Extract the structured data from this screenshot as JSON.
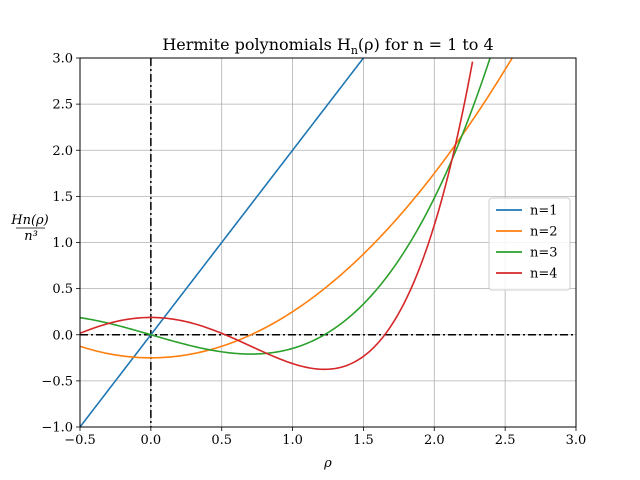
{
  "chart_data": {
    "type": "line",
    "title_text": "Hermite polynomials H",
    "title_sub": "n",
    "title_rest": "(ρ) for n = 1 to 4",
    "xlabel": "ρ",
    "ylabel_top": "Hn(ρ)",
    "ylabel_bottom": "n³",
    "xlim": [
      -0.5,
      3.0
    ],
    "ylim": [
      -1.0,
      3.0
    ],
    "xticks": [
      -0.5,
      0.0,
      0.5,
      1.0,
      1.5,
      2.0,
      2.5,
      3.0
    ],
    "xtick_labels": [
      "−0.5",
      "0.0",
      "0.5",
      "1.0",
      "1.5",
      "2.0",
      "2.5",
      "3.0"
    ],
    "yticks": [
      -1.0,
      -0.5,
      0.0,
      0.5,
      1.0,
      1.5,
      2.0,
      2.5,
      3.0
    ],
    "ytick_labels": [
      "−1.0",
      "−0.5",
      "0.0",
      "0.5",
      "1.0",
      "1.5",
      "2.0",
      "2.5",
      "3.0"
    ],
    "grid": true,
    "legend_position": "center-right",
    "reference_lines": [
      {
        "orientation": "horizontal",
        "value": 0.0,
        "style": "dash-dot",
        "color": "#000000"
      },
      {
        "orientation": "vertical",
        "value": 0.0,
        "style": "dash-dot",
        "color": "#000000"
      }
    ],
    "series": [
      {
        "name": "n=1",
        "color": "#1f77b4",
        "n": 1,
        "x": [
          -0.5,
          -0.25,
          0.0,
          0.25,
          0.5,
          0.75,
          1.0,
          1.25,
          1.5
        ],
        "y": [
          -1.0,
          -0.5,
          0.0,
          0.5,
          1.0,
          1.5,
          2.0,
          2.5,
          3.0
        ]
      },
      {
        "name": "n=2",
        "color": "#ff7f0e",
        "n": 2,
        "x": [
          -0.5,
          -0.25,
          0.0,
          0.25,
          0.5,
          0.75,
          1.0,
          1.25,
          1.5,
          1.75,
          2.0,
          2.25,
          2.5,
          2.56
        ],
        "y": [
          -0.125,
          -0.219,
          -0.25,
          -0.219,
          -0.125,
          0.031,
          0.25,
          0.531,
          0.875,
          1.281,
          1.75,
          2.281,
          2.875,
          3.027
        ]
      },
      {
        "name": "n=3",
        "color": "#2ca02c",
        "n": 3,
        "x": [
          -0.5,
          -0.25,
          0.0,
          0.25,
          0.5,
          0.75,
          1.0,
          1.25,
          1.5,
          1.75,
          2.0,
          2.25,
          2.4
        ],
        "y": [
          0.185,
          0.102,
          0.0,
          -0.102,
          -0.185,
          -0.219,
          -0.148,
          0.058,
          0.444,
          1.065,
          1.926,
          3.102,
          3.91
        ]
      },
      {
        "name": "n=4",
        "color": "#d62728",
        "n": 4,
        "x": [
          -0.5,
          -0.25,
          0.0,
          0.25,
          0.5,
          0.75,
          1.0,
          1.25,
          1.5,
          1.75,
          2.0,
          2.1,
          2.2,
          2.27
        ],
        "y": [
          0.016,
          0.129,
          0.188,
          0.129,
          -0.016,
          -0.176,
          -0.313,
          -0.356,
          -0.203,
          0.327,
          1.141,
          1.553,
          2.082,
          2.483
        ]
      }
    ]
  }
}
